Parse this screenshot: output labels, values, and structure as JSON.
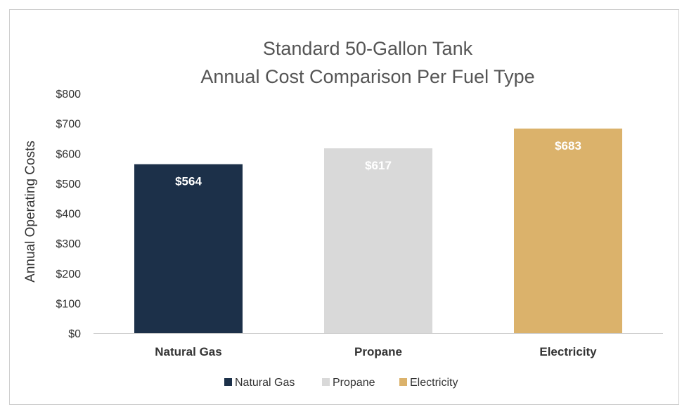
{
  "chart_data": {
    "type": "bar",
    "title_lines": [
      "Standard 50-Gallon Tank",
      "Annual Cost Comparison Per Fuel Type"
    ],
    "xlabel": "",
    "ylabel": "Annual Operating Costs",
    "categories": [
      "Natural Gas",
      "Propane",
      "Electricity"
    ],
    "values": [
      564,
      617,
      683
    ],
    "data_labels": [
      "$564",
      "$617",
      "$683"
    ],
    "colors": [
      "#1c3049",
      "#d9d9d9",
      "#dbb26b"
    ],
    "ylim": [
      0,
      800
    ],
    "yticks": [
      0,
      100,
      200,
      300,
      400,
      500,
      600,
      700,
      800
    ],
    "ytick_labels": [
      "$0",
      "$100",
      "$200",
      "$300",
      "$400",
      "$500",
      "$600",
      "$700",
      "$800"
    ],
    "grid": false,
    "legend": {
      "placement": "bottom",
      "entries": [
        "Natural Gas",
        "Propane",
        "Electricity"
      ]
    }
  }
}
